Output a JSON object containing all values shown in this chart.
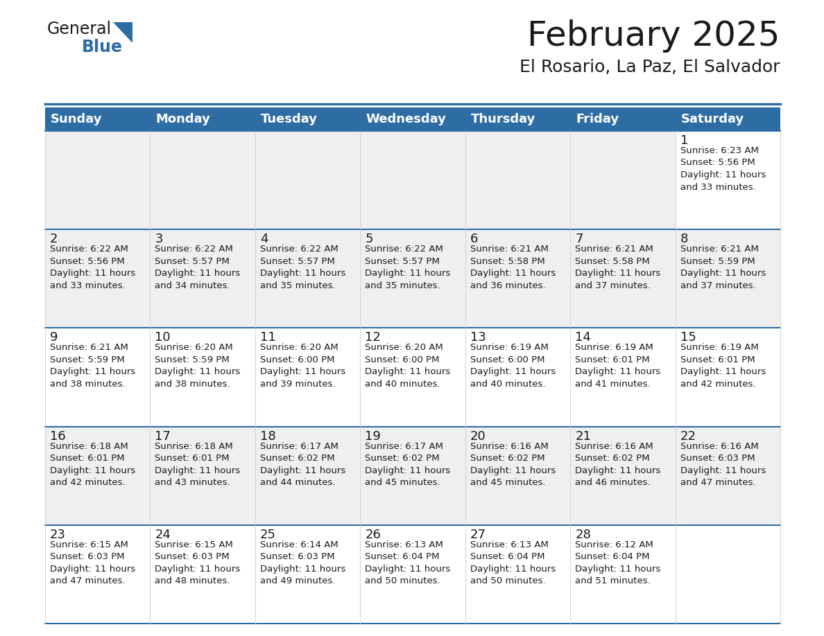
{
  "title": "February 2025",
  "subtitle": "El Rosario, La Paz, El Salvador",
  "header_bg": "#2E6DA4",
  "header_text_color": "#FFFFFF",
  "cell_bg_white": "#FFFFFF",
  "cell_bg_light": "#EFEFEF",
  "border_color": "#2E6DA4",
  "day_headers": [
    "Sunday",
    "Monday",
    "Tuesday",
    "Wednesday",
    "Thursday",
    "Friday",
    "Saturday"
  ],
  "calendar_data": [
    [
      null,
      null,
      null,
      null,
      null,
      null,
      {
        "day": 1,
        "sunrise": "6:23 AM",
        "sunset": "5:56 PM",
        "daylight": "11 hours\nand 33 minutes."
      }
    ],
    [
      {
        "day": 2,
        "sunrise": "6:22 AM",
        "sunset": "5:56 PM",
        "daylight": "11 hours\nand 33 minutes."
      },
      {
        "day": 3,
        "sunrise": "6:22 AM",
        "sunset": "5:57 PM",
        "daylight": "11 hours\nand 34 minutes."
      },
      {
        "day": 4,
        "sunrise": "6:22 AM",
        "sunset": "5:57 PM",
        "daylight": "11 hours\nand 35 minutes."
      },
      {
        "day": 5,
        "sunrise": "6:22 AM",
        "sunset": "5:57 PM",
        "daylight": "11 hours\nand 35 minutes."
      },
      {
        "day": 6,
        "sunrise": "6:21 AM",
        "sunset": "5:58 PM",
        "daylight": "11 hours\nand 36 minutes."
      },
      {
        "day": 7,
        "sunrise": "6:21 AM",
        "sunset": "5:58 PM",
        "daylight": "11 hours\nand 37 minutes."
      },
      {
        "day": 8,
        "sunrise": "6:21 AM",
        "sunset": "5:59 PM",
        "daylight": "11 hours\nand 37 minutes."
      }
    ],
    [
      {
        "day": 9,
        "sunrise": "6:21 AM",
        "sunset": "5:59 PM",
        "daylight": "11 hours\nand 38 minutes."
      },
      {
        "day": 10,
        "sunrise": "6:20 AM",
        "sunset": "5:59 PM",
        "daylight": "11 hours\nand 38 minutes."
      },
      {
        "day": 11,
        "sunrise": "6:20 AM",
        "sunset": "6:00 PM",
        "daylight": "11 hours\nand 39 minutes."
      },
      {
        "day": 12,
        "sunrise": "6:20 AM",
        "sunset": "6:00 PM",
        "daylight": "11 hours\nand 40 minutes."
      },
      {
        "day": 13,
        "sunrise": "6:19 AM",
        "sunset": "6:00 PM",
        "daylight": "11 hours\nand 40 minutes."
      },
      {
        "day": 14,
        "sunrise": "6:19 AM",
        "sunset": "6:01 PM",
        "daylight": "11 hours\nand 41 minutes."
      },
      {
        "day": 15,
        "sunrise": "6:19 AM",
        "sunset": "6:01 PM",
        "daylight": "11 hours\nand 42 minutes."
      }
    ],
    [
      {
        "day": 16,
        "sunrise": "6:18 AM",
        "sunset": "6:01 PM",
        "daylight": "11 hours\nand 42 minutes."
      },
      {
        "day": 17,
        "sunrise": "6:18 AM",
        "sunset": "6:01 PM",
        "daylight": "11 hours\nand 43 minutes."
      },
      {
        "day": 18,
        "sunrise": "6:17 AM",
        "sunset": "6:02 PM",
        "daylight": "11 hours\nand 44 minutes."
      },
      {
        "day": 19,
        "sunrise": "6:17 AM",
        "sunset": "6:02 PM",
        "daylight": "11 hours\nand 45 minutes."
      },
      {
        "day": 20,
        "sunrise": "6:16 AM",
        "sunset": "6:02 PM",
        "daylight": "11 hours\nand 45 minutes."
      },
      {
        "day": 21,
        "sunrise": "6:16 AM",
        "sunset": "6:02 PM",
        "daylight": "11 hours\nand 46 minutes."
      },
      {
        "day": 22,
        "sunrise": "6:16 AM",
        "sunset": "6:03 PM",
        "daylight": "11 hours\nand 47 minutes."
      }
    ],
    [
      {
        "day": 23,
        "sunrise": "6:15 AM",
        "sunset": "6:03 PM",
        "daylight": "11 hours\nand 47 minutes."
      },
      {
        "day": 24,
        "sunrise": "6:15 AM",
        "sunset": "6:03 PM",
        "daylight": "11 hours\nand 48 minutes."
      },
      {
        "day": 25,
        "sunrise": "6:14 AM",
        "sunset": "6:03 PM",
        "daylight": "11 hours\nand 49 minutes."
      },
      {
        "day": 26,
        "sunrise": "6:13 AM",
        "sunset": "6:04 PM",
        "daylight": "11 hours\nand 50 minutes."
      },
      {
        "day": 27,
        "sunrise": "6:13 AM",
        "sunset": "6:04 PM",
        "daylight": "11 hours\nand 50 minutes."
      },
      {
        "day": 28,
        "sunrise": "6:12 AM",
        "sunset": "6:04 PM",
        "daylight": "11 hours\nand 51 minutes."
      },
      null
    ]
  ],
  "title_fontsize": 36,
  "subtitle_fontsize": 18,
  "header_fontsize": 13,
  "day_num_fontsize": 13,
  "cell_text_fontsize": 9.5,
  "logo_general_fontsize": 17,
  "logo_blue_fontsize": 17
}
